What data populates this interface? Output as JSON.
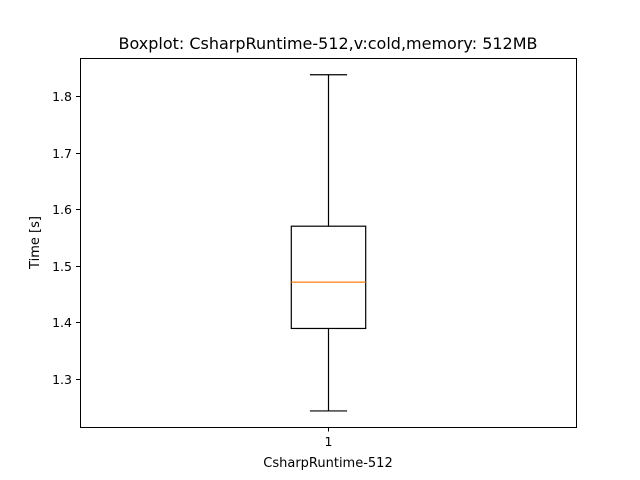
{
  "chart_data": {
    "type": "box",
    "title": "Boxplot: CsharpRuntime-512,v:cold,memory: 512MB",
    "xlabel": "CsharpRuntime-512",
    "ylabel": "Time [s]",
    "categories": [
      "1"
    ],
    "yticks": [
      "1.3",
      "1.4",
      "1.5",
      "1.6",
      "1.7",
      "1.8"
    ],
    "ytick_values": [
      1.3,
      1.4,
      1.5,
      1.6,
      1.7,
      1.8
    ],
    "ylim": [
      1.2146,
      1.8677
    ],
    "xlim": [
      0.5,
      1.5
    ],
    "grid": false,
    "boxes": [
      {
        "position": 1,
        "whisker_low": 1.243,
        "q1": 1.389,
        "median": 1.471,
        "q3": 1.57,
        "whisker_high": 1.838
      }
    ],
    "colors": {
      "box": "#000000",
      "median": "#ff7f0e",
      "whisker": "#000000"
    }
  }
}
